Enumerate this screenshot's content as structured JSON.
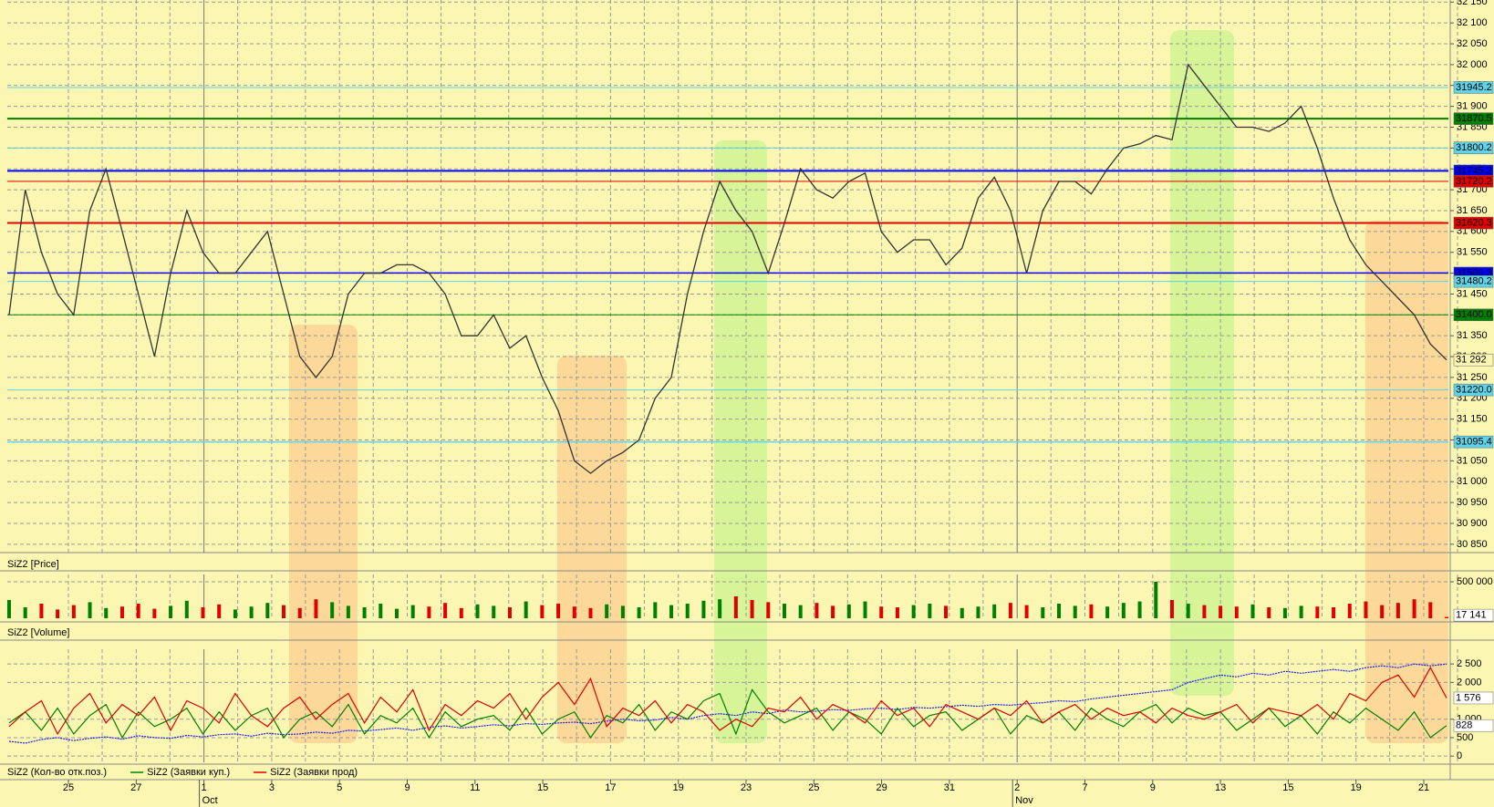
{
  "chart_data": [
    {
      "type": "line",
      "title": "SiZ2 [Price]",
      "values": [
        31400,
        31700,
        31550,
        31450,
        31400,
        31650,
        31750,
        31600,
        31450,
        31300,
        31500,
        31650,
        31550,
        31500,
        31500,
        31550,
        31600,
        31450,
        31300,
        31250,
        31300,
        31450,
        31500,
        31500,
        31520,
        31520,
        31500,
        31450,
        31350,
        31350,
        31400,
        31320,
        31350,
        31250,
        31170,
        31050,
        31020,
        31050,
        31070,
        31100,
        31200,
        31250,
        31450,
        31600,
        31720,
        31650,
        31600,
        31500,
        31620,
        31750,
        31700,
        31680,
        31720,
        31740,
        31600,
        31550,
        31580,
        31580,
        31520,
        31560,
        31680,
        31730,
        31650,
        31500,
        31650,
        31720,
        31720,
        31690,
        31750,
        31800,
        31810,
        31830,
        31820,
        32000,
        31950,
        31900,
        31850,
        31850,
        31840,
        31860,
        31900,
        31800,
        31680,
        31580,
        31520,
        31480,
        31440,
        31400,
        31330,
        31292
      ],
      "color": "#333333",
      "last_label": {
        "value": 31292,
        "label": "31 292"
      },
      "ylim": [
        30830,
        32155
      ],
      "yticks": [
        {
          "value": 32150,
          "label": "32 150"
        },
        {
          "value": 32100,
          "label": "32 100"
        },
        {
          "value": 32050,
          "label": "32 050"
        },
        {
          "value": 32000,
          "label": "32 000"
        },
        {
          "value": 31950,
          "label": "31 950"
        },
        {
          "value": 31900,
          "label": "31 900"
        },
        {
          "value": 31850,
          "label": "31 850"
        },
        {
          "value": 31800,
          "label": "31 800"
        },
        {
          "value": 31750,
          "label": "31 750"
        },
        {
          "value": 31700,
          "label": "31 700"
        },
        {
          "value": 31650,
          "label": "31 650"
        },
        {
          "value": 31600,
          "label": "31 600"
        },
        {
          "value": 31550,
          "label": "31 550"
        },
        {
          "value": 31500,
          "label": "31 500"
        },
        {
          "value": 31450,
          "label": "31 450"
        },
        {
          "value": 31400,
          "label": "31 400"
        },
        {
          "value": 31350,
          "label": "31 350"
        },
        {
          "value": 31300,
          "label": "31 300"
        },
        {
          "value": 31250,
          "label": "31 250"
        },
        {
          "value": 31200,
          "label": "31 200"
        },
        {
          "value": 31150,
          "label": "31 150"
        },
        {
          "value": 31100,
          "label": "31 100"
        },
        {
          "value": 31050,
          "label": "31 050"
        },
        {
          "value": 31000,
          "label": "31 000"
        },
        {
          "value": 30950,
          "label": "30 950"
        },
        {
          "value": 30900,
          "label": "30 900"
        },
        {
          "value": 30850,
          "label": "30 850"
        }
      ],
      "levels": [
        {
          "value": 31945.2,
          "label": "31945.2",
          "color": "#5fd3e8",
          "text_color": "#000000",
          "width": 1
        },
        {
          "value": 31870.5,
          "label": "31870.5",
          "color": "#008000",
          "text_color": "#ffffff",
          "width": 2
        },
        {
          "value": 31800.2,
          "label": "31800.2",
          "color": "#5fd3e8",
          "text_color": "#000000",
          "width": 1
        },
        {
          "value": 31745.2,
          "label": "31745.2",
          "color": "#0000ff",
          "text_color": "#ffffff",
          "width": 2
        },
        {
          "value": 31720.2,
          "label": "31720.2",
          "color": "#e00000",
          "text_color": "#ffffff",
          "width": 1
        },
        {
          "value": 31620.3,
          "label": "31620.3",
          "color": "#e00000",
          "text_color": "#ffffff",
          "width": 2
        },
        {
          "value": 31500.3,
          "label": "31500.3",
          "color": "#0000ff",
          "text_color": "#ffffff",
          "width": 1.5
        },
        {
          "value": 31480.2,
          "label": "31480.2",
          "color": "#5fd3e8",
          "text_color": "#000000",
          "width": 1
        },
        {
          "value": 31400.0,
          "label": "31400.0",
          "color": "#008000",
          "text_color": "#ffffff",
          "width": 1
        },
        {
          "value": 31220.0,
          "label": "31220.0",
          "color": "#5fd3e8",
          "text_color": "#000000",
          "width": 1
        },
        {
          "value": 31095.4,
          "label": "31095.4",
          "color": "#5fd3e8",
          "text_color": "#000000",
          "width": 1.5
        }
      ],
      "grid": true
    },
    {
      "type": "bar",
      "title": "SiZ2 [Volume]",
      "values": [
        250000,
        150000,
        200000,
        120000,
        180000,
        220000,
        140000,
        160000,
        200000,
        130000,
        170000,
        240000,
        150000,
        190000,
        120000,
        160000,
        210000,
        180000,
        140000,
        260000,
        220000,
        170000,
        150000,
        200000,
        130000,
        180000,
        160000,
        210000,
        140000,
        190000,
        170000,
        150000,
        230000,
        180000,
        200000,
        160000,
        140000,
        190000,
        170000,
        150000,
        220000,
        180000,
        200000,
        240000,
        260000,
        300000,
        250000,
        220000,
        200000,
        180000,
        210000,
        170000,
        190000,
        230000,
        160000,
        150000,
        180000,
        200000,
        170000,
        140000,
        160000,
        190000,
        210000,
        180000,
        150000,
        200000,
        170000,
        190000,
        160000,
        210000,
        230000,
        500000,
        250000,
        200000,
        180000,
        170000,
        160000,
        190000,
        150000,
        140000,
        170000,
        160000,
        150000,
        200000,
        230000,
        180000,
        210000,
        260000,
        220000,
        17141
      ],
      "up_color": "#008000",
      "down_color": "#e00000",
      "last_label": {
        "value": 17141,
        "label": "17 141"
      },
      "ylim": [
        0,
        600000
      ],
      "yticks": [
        {
          "value": 500000,
          "label": "500 000"
        }
      ],
      "grid": true
    },
    {
      "type": "line",
      "series": [
        {
          "name": "SiZ2 (Кол-во отк.поз.)",
          "color": "#2020ff",
          "values": [
            400,
            350,
            450,
            500,
            420,
            480,
            520,
            460,
            550,
            500,
            480,
            560,
            520,
            580,
            600,
            540,
            620,
            580,
            600,
            650,
            620,
            700,
            680,
            720,
            760,
            700,
            780,
            820,
            760,
            800,
            850,
            820,
            880,
            860,
            900,
            920,
            880,
            950,
            1000,
            960,
            980,
            1050,
            1000,
            1100,
            1150,
            1100,
            1200,
            1150,
            1250,
            1200,
            1220,
            1260,
            1240,
            1280,
            1300,
            1260,
            1320,
            1300,
            1340,
            1380,
            1350,
            1400,
            1380,
            1420,
            1450,
            1500,
            1480,
            1550,
            1600,
            1650,
            1700,
            1750,
            1800,
            2000,
            2100,
            2200,
            2150,
            2250,
            2200,
            2300,
            2250,
            2300,
            2350,
            2300,
            2400,
            2450,
            2400,
            2500,
            2450,
            2500
          ]
        },
        {
          "name": "SiZ2 (Заявки куп.)",
          "color": "#008000",
          "values": [
            900,
            1200,
            700,
            1300,
            600,
            1100,
            1400,
            500,
            1200,
            800,
            1000,
            1300,
            600,
            1200,
            700,
            1100,
            1300,
            500,
            1000,
            1200,
            800,
            1400,
            600,
            1100,
            900,
            1300,
            500,
            1200,
            800,
            1000,
            1100,
            700,
            1300,
            600,
            1000,
            1200,
            500,
            1100,
            900,
            1400,
            700,
            1200,
            1000,
            1500,
            1700,
            600,
            1800,
            1200,
            900,
            1100,
            1300,
            700,
            1200,
            1000,
            600,
            1300,
            800,
            1100,
            1200,
            700,
            1000,
            1300,
            600,
            1100,
            900,
            1200,
            700,
            1300,
            1000,
            800,
            1200,
            1400,
            900,
            1300,
            1100,
            1200,
            700,
            1000,
            1300,
            800,
            1100,
            600,
            1200,
            900,
            1300,
            1000,
            700,
            1200,
            500,
            828
          ],
          "last_label": {
            "value": 828,
            "label": "828"
          }
        },
        {
          "name": "SiZ2 (Заявки прод)",
          "color": "#e00000",
          "values": [
            800,
            1200,
            1500,
            600,
            1300,
            1700,
            900,
            1400,
            1100,
            1600,
            700,
            1500,
            1300,
            900,
            1700,
            1100,
            800,
            1300,
            1600,
            1000,
            1400,
            1700,
            900,
            1600,
            1200,
            1800,
            700,
            1400,
            1100,
            1500,
            1300,
            1700,
            1000,
            1600,
            2000,
            1400,
            2100,
            800,
            1300,
            1100,
            1500,
            900,
            1400,
            1200,
            700,
            1000,
            800,
            1300,
            1200,
            1600,
            1000,
            1400,
            1200,
            900,
            1500,
            1100,
            1300,
            800,
            1400,
            1200,
            1000,
            1300,
            1100,
            1500,
            900,
            1200,
            1400,
            1000,
            1300,
            1100,
            1200,
            900,
            1300,
            1100,
            1000,
            1200,
            1400,
            900,
            1300,
            1200,
            1100,
            1400,
            1000,
            1700,
            1500,
            2000,
            2200,
            1600,
            2400,
            1576
          ],
          "last_label": {
            "value": 1576,
            "label": "1 576"
          }
        }
      ],
      "ylim": [
        -170,
        2900
      ],
      "yticks": [
        0,
        500,
        {
          "value": 1000,
          "label": "1 000"
        },
        {
          "value": 2000,
          "label": "2 000"
        },
        {
          "value": 2500,
          "label": "2 500"
        }
      ],
      "grid": true
    }
  ],
  "dates": [
    {
      "day": "25"
    },
    {
      "day": "27"
    },
    {
      "day": "1",
      "month": "Oct"
    },
    {
      "day": "3"
    },
    {
      "day": "5"
    },
    {
      "day": "9"
    },
    {
      "day": "11"
    },
    {
      "day": "15"
    },
    {
      "day": "17"
    },
    {
      "day": "19"
    },
    {
      "day": "23"
    },
    {
      "day": "25"
    },
    {
      "day": "29"
    },
    {
      "day": "31"
    },
    {
      "day": "2",
      "month": "Nov"
    },
    {
      "day": "7"
    },
    {
      "day": "9"
    },
    {
      "day": "13"
    },
    {
      "day": "15"
    },
    {
      "day": "19"
    },
    {
      "day": "21"
    }
  ]
}
